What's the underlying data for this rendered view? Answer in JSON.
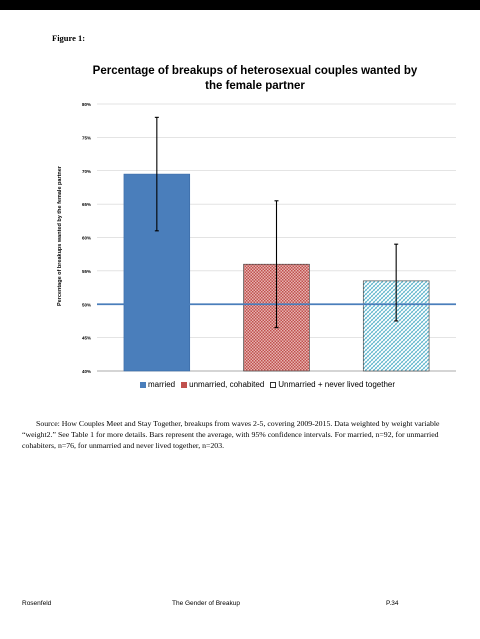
{
  "figure_label": "Figure 1:",
  "chart_data": {
    "type": "bar",
    "title": "Percentage of breakups of heterosexual couples wanted by the female partner",
    "ylabel": "Percentage of breakups wanted by the female partner",
    "xlabel": "",
    "ylim": [
      40,
      80
    ],
    "yticks": [
      "80%",
      "75%",
      "70%",
      "65%",
      "60%",
      "55%",
      "50%",
      "45%",
      "40%"
    ],
    "ytick_values": [
      80,
      75,
      70,
      65,
      60,
      55,
      50,
      45,
      40
    ],
    "grid": true,
    "reference_line": 50,
    "series": [
      {
        "name": "married",
        "value": 69.5,
        "ci_low": 61,
        "ci_high": 78,
        "color": "#4a7ebb",
        "pattern": "solid"
      },
      {
        "name": "unmarried, cohabited",
        "value": 56,
        "ci_low": 46.5,
        "ci_high": 65.5,
        "color": "#c0504d",
        "pattern": "checker"
      },
      {
        "name": "Unmarried + never lived together",
        "value": 53.5,
        "ci_low": 47.5,
        "ci_high": 59,
        "color": "#4bacc6",
        "pattern": "diagonal"
      }
    ],
    "reference_color": "#4a7ebb",
    "legend_position": "bottom"
  },
  "source_text": "Source: How Couples Meet and Stay Together, breakups from waves 2-5, covering 2009-2015. Data weighted by weight variable “weight2.” See Table 1 for more details. Bars represent the average, with 95% confidence intervals. For married, n=92, for unmarried cohabiters, n=76, for unmarried and never lived together, n=203.",
  "footer": {
    "author": "Rosenfeld",
    "title": "The Gender of Breakup",
    "page": "P.34"
  }
}
